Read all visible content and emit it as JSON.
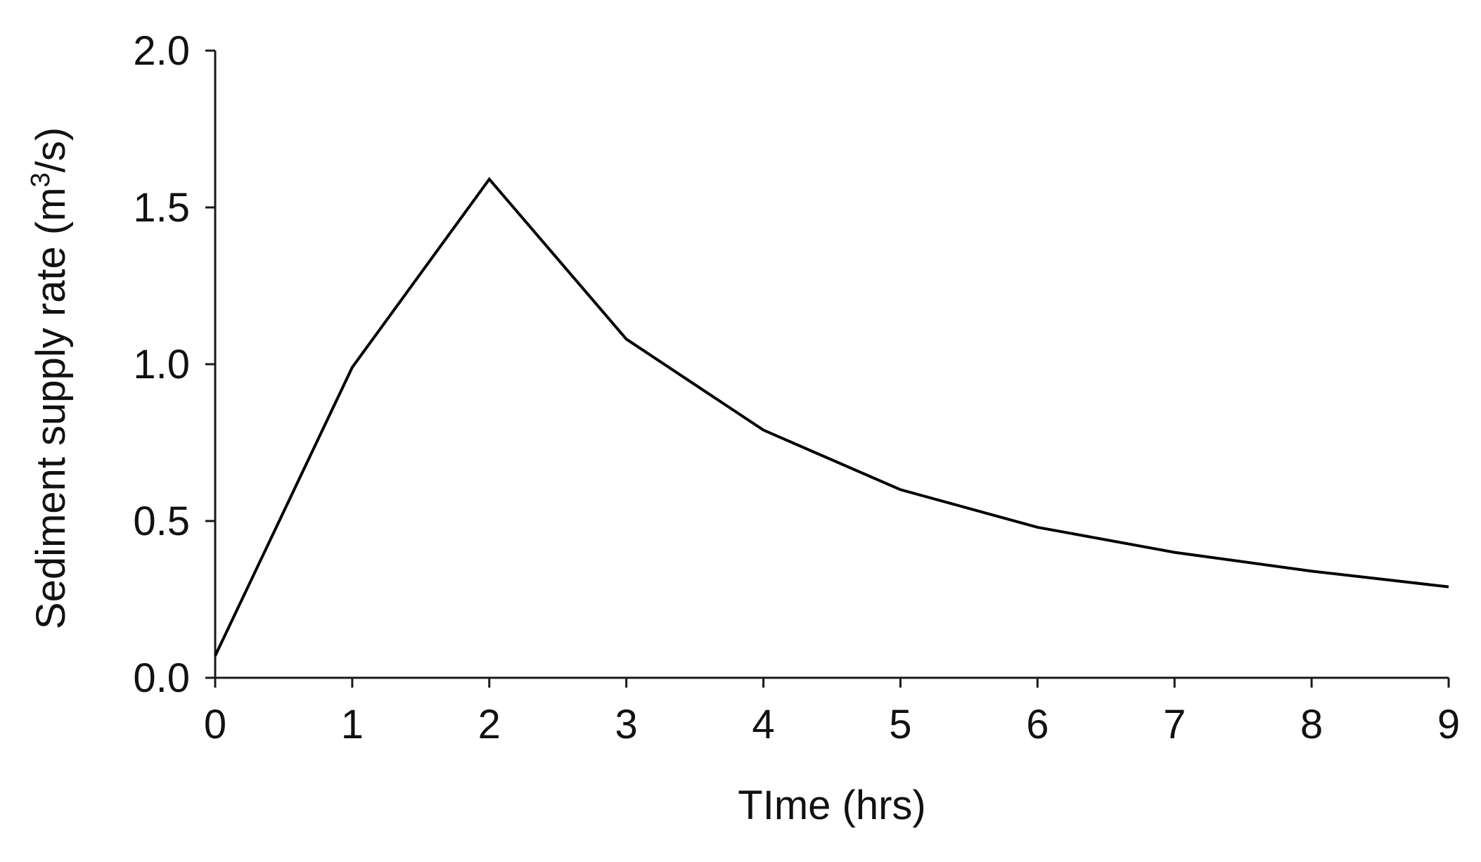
{
  "chart_data": {
    "type": "line",
    "title": "",
    "xlabel": "TIme (hrs)",
    "ylabel_prefix": "Sediment supply rate (m",
    "ylabel_sup": "3",
    "ylabel_suffix": "/s)",
    "xlim": [
      0,
      9
    ],
    "ylim": [
      0,
      2.0
    ],
    "x_ticks": [
      0,
      1,
      2,
      3,
      4,
      5,
      6,
      7,
      8,
      9
    ],
    "y_ticks": [
      0.0,
      0.5,
      1.0,
      1.5,
      2.0
    ],
    "y_tick_labels": [
      "0.0",
      "0.5",
      "1.0",
      "1.5",
      "2.0"
    ],
    "x_tick_labels": [
      "0",
      "1",
      "2",
      "3",
      "4",
      "5",
      "6",
      "7",
      "8",
      "9"
    ],
    "grid": false,
    "legend": false,
    "series": [
      {
        "color": "#000000",
        "x": [
          0,
          1,
          2,
          3,
          4,
          5,
          6,
          7,
          8,
          9
        ],
        "y": [
          0.07,
          0.99,
          1.59,
          1.08,
          0.79,
          0.6,
          0.48,
          0.4,
          0.34,
          0.29
        ]
      }
    ]
  }
}
